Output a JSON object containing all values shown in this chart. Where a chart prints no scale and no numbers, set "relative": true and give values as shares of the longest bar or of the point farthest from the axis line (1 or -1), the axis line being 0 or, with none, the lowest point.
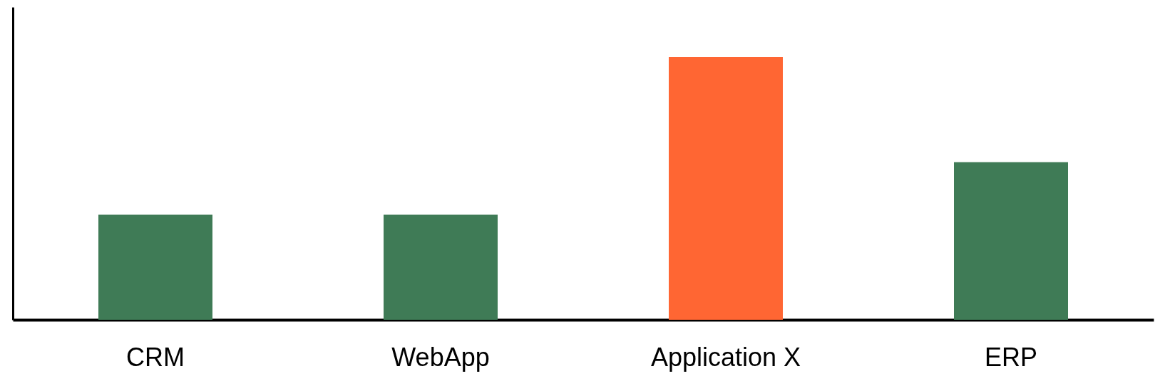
{
  "chart_data": {
    "type": "bar",
    "relative": true,
    "categories": [
      "CRM",
      "WebApp",
      "Application X",
      "ERP"
    ],
    "values": [
      0.4,
      0.4,
      1,
      0.6
    ],
    "colors": [
      "#3f7b56",
      "#3f7b56",
      "#ff6633",
      "#3f7b56"
    ]
  }
}
